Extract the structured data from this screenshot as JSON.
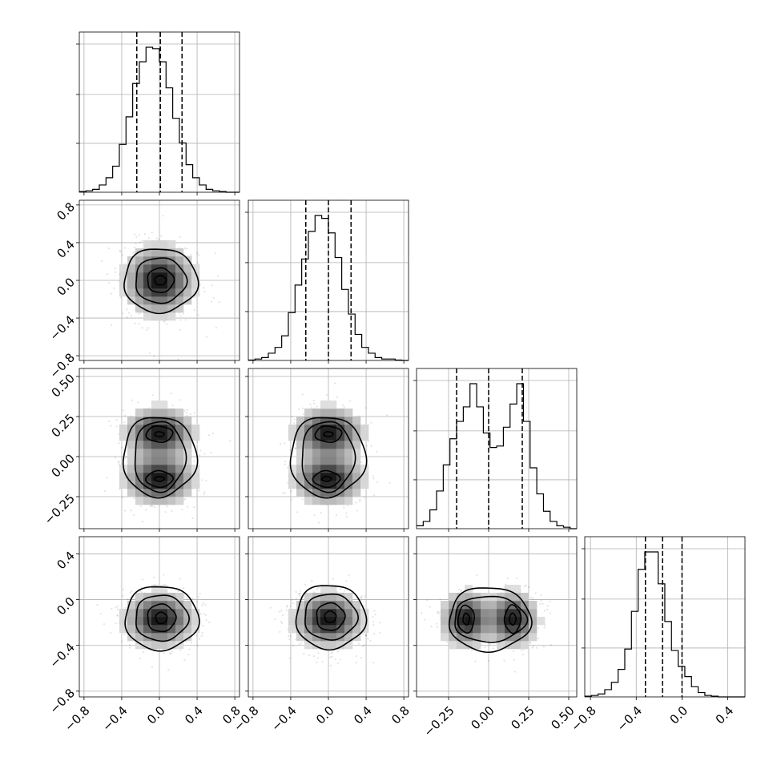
{
  "chart_data": {
    "type": "corner",
    "n_params": 4,
    "grid": true,
    "param_ranges": [
      [
        -0.85,
        0.85
      ],
      [
        -0.85,
        0.85
      ],
      [
        -0.45,
        0.55
      ],
      [
        -0.85,
        0.55
      ]
    ],
    "tick_values": [
      [
        -0.8,
        -0.4,
        0.0,
        0.4,
        0.8
      ],
      [
        -0.8,
        -0.4,
        0.0,
        0.4,
        0.8
      ],
      [
        -0.25,
        0.0,
        0.25,
        0.5
      ],
      [
        -0.8,
        -0.4,
        0.0,
        0.4
      ]
    ],
    "tick_labels": [
      [
        "−0.8",
        "−0.4",
        "0.0",
        "0.4",
        "0.8"
      ],
      [
        "−0.8",
        "−0.4",
        "0.0",
        "0.4",
        "0.8"
      ],
      [
        "−0.25",
        "0.00",
        "0.25",
        "0.50"
      ],
      [
        "−0.8",
        "−0.4",
        "0.0",
        "0.4"
      ]
    ],
    "quantiles": [
      [
        -0.24,
        0.01,
        0.24
      ],
      [
        -0.24,
        0.0,
        0.24
      ],
      [
        -0.2,
        0.0,
        0.21
      ],
      [
        -0.32,
        -0.17,
        0.0
      ]
    ],
    "histograms": [
      {
        "bin_start": -0.85,
        "bin_width": 0.0708,
        "counts": [
          0.5,
          1,
          2,
          5,
          10,
          18,
          33,
          52,
          75,
          90,
          100,
          99,
          90,
          72,
          51,
          34,
          19,
          10,
          5,
          2,
          1,
          0.5,
          0,
          0
        ]
      },
      {
        "bin_start": -0.85,
        "bin_width": 0.0708,
        "counts": [
          0.3,
          1,
          2,
          5,
          9,
          17,
          33,
          52,
          70,
          89,
          100,
          98,
          88,
          71,
          49,
          32,
          18,
          9,
          5,
          2,
          1,
          1,
          0.3,
          0
        ]
      },
      {
        "bin_start": -0.45,
        "bin_width": 0.0417,
        "counts": [
          2,
          5,
          13,
          26,
          44,
          62,
          74,
          84,
          100,
          84,
          66,
          56,
          57,
          70,
          86,
          100,
          74,
          42,
          24,
          12,
          5,
          2,
          1,
          0
        ]
      },
      {
        "bin_start": -0.85,
        "bin_width": 0.0583,
        "counts": [
          0.5,
          1,
          2,
          5,
          10,
          19,
          33,
          59,
          88,
          100,
          100,
          78,
          52,
          32,
          21,
          14,
          7,
          3,
          1,
          0.5,
          0,
          0,
          0,
          0
        ]
      }
    ],
    "marginals": [
      {
        "components": [
          {
            "mean": 0.0,
            "sd": 0.2
          }
        ]
      },
      {
        "components": [
          {
            "mean": 0.0,
            "sd": 0.2
          }
        ]
      },
      {
        "components": [
          {
            "mean": -0.14,
            "sd": 0.085
          },
          {
            "mean": 0.15,
            "sd": 0.085
          }
        ]
      },
      {
        "components": [
          {
            "mean": -0.17,
            "sd": 0.13
          }
        ]
      }
    ],
    "pairs": [
      {
        "row": 1,
        "col": 0,
        "modes": [
          {
            "x": 0.01,
            "y": 0.0
          }
        ],
        "contour_radii": [
          [
            0.06,
            0.05
          ],
          [
            0.14,
            0.13
          ],
          [
            0.27,
            0.24
          ],
          [
            0.39,
            0.34
          ]
        ]
      },
      {
        "row": 2,
        "col": 0,
        "modes": [
          {
            "x": 0.0,
            "y": 0.14
          },
          {
            "x": 0.0,
            "y": -0.14
          }
        ],
        "contour_radii": [
          [
            0.05,
            0.015
          ],
          [
            0.14,
            0.05
          ],
          [
            0.27,
            0.08
          ],
          [
            0.39,
            0.11
          ]
        ]
      },
      {
        "row": 2,
        "col": 1,
        "modes": [
          {
            "x": 0.0,
            "y": 0.14
          },
          {
            "x": -0.02,
            "y": -0.14
          }
        ],
        "contour_radii": [
          [
            0.05,
            0.015
          ],
          [
            0.14,
            0.05
          ],
          [
            0.27,
            0.08
          ],
          [
            0.39,
            0.11
          ]
        ]
      },
      {
        "row": 3,
        "col": 0,
        "modes": [
          {
            "x": 0.02,
            "y": -0.16
          }
        ],
        "contour_radii": [
          [
            0.06,
            0.05
          ],
          [
            0.15,
            0.12
          ],
          [
            0.28,
            0.2
          ],
          [
            0.39,
            0.28
          ]
        ]
      },
      {
        "row": 3,
        "col": 1,
        "modes": [
          {
            "x": 0.02,
            "y": -0.15
          }
        ],
        "contour_radii": [
          [
            0.06,
            0.05
          ],
          [
            0.15,
            0.12
          ],
          [
            0.28,
            0.2
          ],
          [
            0.37,
            0.28
          ]
        ]
      },
      {
        "row": 3,
        "col": 2,
        "modes": [
          {
            "x": -0.14,
            "y": -0.17
          },
          {
            "x": 0.15,
            "y": -0.17
          }
        ],
        "contour_radii": [
          [
            0.02,
            0.05
          ],
          [
            0.05,
            0.12
          ],
          [
            0.08,
            0.2
          ],
          [
            0.11,
            0.28
          ]
        ]
      }
    ]
  }
}
